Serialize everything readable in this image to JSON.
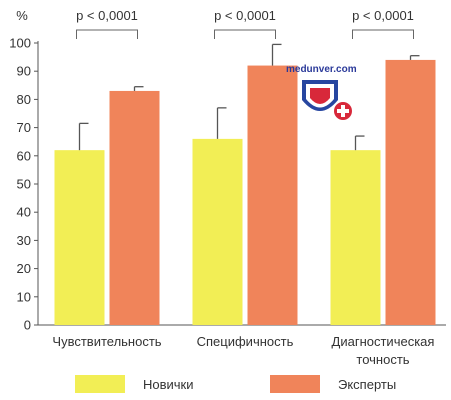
{
  "chart_data": {
    "type": "bar",
    "y_unit": "%",
    "ylim": [
      0,
      100
    ],
    "yticks": [
      0,
      10,
      20,
      30,
      40,
      50,
      60,
      70,
      80,
      90,
      100
    ],
    "grid": false,
    "legend_position": "bottom",
    "categories": [
      [
        "Чувствительность"
      ],
      [
        "Специфичность"
      ],
      [
        "Диагностическая",
        "точность"
      ]
    ],
    "series": [
      {
        "name": "Новички",
        "color": "#f2ee55",
        "values": [
          62,
          66,
          62
        ],
        "errors": [
          9.5,
          11,
          5
        ]
      },
      {
        "name": "Эксперты",
        "color": "#f0845a",
        "values": [
          83,
          92,
          94
        ],
        "errors": [
          1.5,
          7.5,
          1.5
        ]
      }
    ],
    "annotations": [
      "p < 0,0001",
      "p < 0,0001",
      "p < 0,0001"
    ]
  },
  "watermark": {
    "text": "medunver.com",
    "icon": "shield-cross-icon"
  }
}
